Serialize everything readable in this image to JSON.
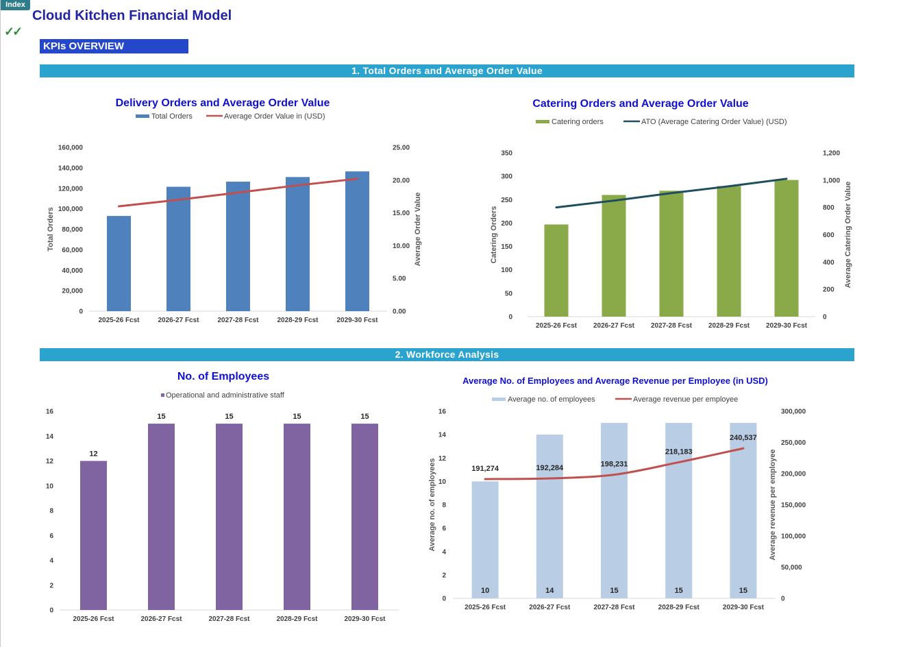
{
  "header": {
    "index_label": "Index",
    "title": "Cloud Kitchen Financial Model",
    "check_glyph": "✓✓",
    "kpi_label": "KPIs OVERVIEW"
  },
  "sections": {
    "orders": "1. Total Orders and Average Order Value",
    "workforce": "2. Workforce Analysis"
  },
  "colors": {
    "band": "#2aa3cf",
    "kpi_box": "#2547c9",
    "title": "#2323a8",
    "delivery_bar": "#4f81bd",
    "red_line": "#c0504d",
    "catering_bar": "#8aaa4a",
    "catering_line": "#1f4e5f",
    "employee_bar": "#8064a2",
    "avg_emp_bar": "#b9cde5"
  },
  "chart_data": [
    {
      "id": "delivery",
      "type": "bar",
      "title": "Delivery Orders and  Average Order Value",
      "categories": [
        "2025-26 Fcst",
        "2026-27 Fcst",
        "2027-28 Fcst",
        "2028-29 Fcst",
        "2029-30 Fcst"
      ],
      "series": [
        {
          "name": "Total Orders",
          "type": "bar",
          "axis": "left",
          "values": [
            93000,
            121500,
            126500,
            131000,
            136500
          ]
        },
        {
          "name": "Average Order Value in (USD)",
          "type": "line",
          "axis": "right",
          "values": [
            16.0,
            17.0,
            18.1,
            19.2,
            20.2
          ]
        }
      ],
      "ylabel": "Total Orders",
      "y2label": "Average Order Value",
      "ylim": [
        0,
        160000
      ],
      "yticks": [
        "160,000",
        "140,000",
        "120,000",
        "100,000",
        "80,000",
        "60,000",
        "40,000",
        "20,000",
        "0"
      ],
      "y2lim": [
        0,
        25
      ],
      "y2ticks": [
        "25.00",
        "20.00",
        "15.00",
        "10.00",
        "5.00",
        "0.00"
      ],
      "legend": "top",
      "grid": false
    },
    {
      "id": "catering",
      "type": "bar",
      "title": "Catering Orders and Average Order Value",
      "categories": [
        "2025-26 Fcst",
        "2026-27 Fcst",
        "2027-28 Fcst",
        "2028-29 Fcst",
        "2029-30 Fcst"
      ],
      "series": [
        {
          "name": "Catering orders",
          "type": "bar",
          "axis": "left",
          "values": [
            197,
            260,
            269,
            279,
            292
          ]
        },
        {
          "name": "ATO (Average Catering Order Value) (USD)",
          "type": "line",
          "axis": "right",
          "values": [
            800,
            850,
            905,
            955,
            1010
          ]
        }
      ],
      "ylabel": "Catering Orders",
      "y2label": "Average Catering Order Value",
      "ylim": [
        0,
        350
      ],
      "yticks": [
        "350",
        "300",
        "250",
        "200",
        "150",
        "100",
        "50",
        "0"
      ],
      "y2lim": [
        0,
        1200
      ],
      "y2ticks": [
        "1,200",
        "1,000",
        "800",
        "600",
        "400",
        "200",
        "0"
      ],
      "legend": "top",
      "grid": false
    },
    {
      "id": "employees",
      "type": "bar",
      "title": "No. of Employees",
      "categories": [
        "2025-26 Fcst",
        "2026-27 Fcst",
        "2027-28 Fcst",
        "2028-29 Fcst",
        "2029-30 Fcst"
      ],
      "series": [
        {
          "name": "Operational and administrative staff",
          "type": "bar",
          "axis": "left",
          "values": [
            12,
            15,
            15,
            15,
            15
          ]
        }
      ],
      "data_labels": [
        "12",
        "15",
        "15",
        "15",
        "15"
      ],
      "ylim": [
        0,
        16
      ],
      "yticks": [
        "16",
        "14",
        "12",
        "10",
        "8",
        "6",
        "4",
        "2",
        "0"
      ],
      "legend": "top",
      "grid": false
    },
    {
      "id": "revenue_per_employee",
      "type": "bar",
      "title": "Average No. of Employees and Average Revenue per Employee (in USD)",
      "categories": [
        "2025-26 Fcst",
        "2026-27 Fcst",
        "2027-28 Fcst",
        "2028-29 Fcst",
        "2029-30 Fcst"
      ],
      "series": [
        {
          "name": "Average no. of employees",
          "type": "bar",
          "axis": "left",
          "values": [
            10,
            14,
            15,
            15,
            15
          ]
        },
        {
          "name": "Average revenue per employee",
          "type": "line",
          "axis": "right",
          "values": [
            191274,
            192284,
            198231,
            218183,
            240537
          ]
        }
      ],
      "bar_labels": [
        "10",
        "14",
        "15",
        "15",
        "15"
      ],
      "line_labels": [
        "191,274",
        "192,284",
        "198,231",
        "218,183",
        "240,537"
      ],
      "ylabel": "Average no. of  employees",
      "y2label": "Average revenue per employee",
      "ylim": [
        0,
        16
      ],
      "yticks": [
        "16",
        "14",
        "12",
        "10",
        "8",
        "6",
        "4",
        "2",
        "0"
      ],
      "y2lim": [
        0,
        300000
      ],
      "y2ticks": [
        "300,000",
        "250,000",
        "200,000",
        "150,000",
        "100,000",
        "50,000",
        "0"
      ],
      "legend": "top",
      "grid": false
    }
  ]
}
